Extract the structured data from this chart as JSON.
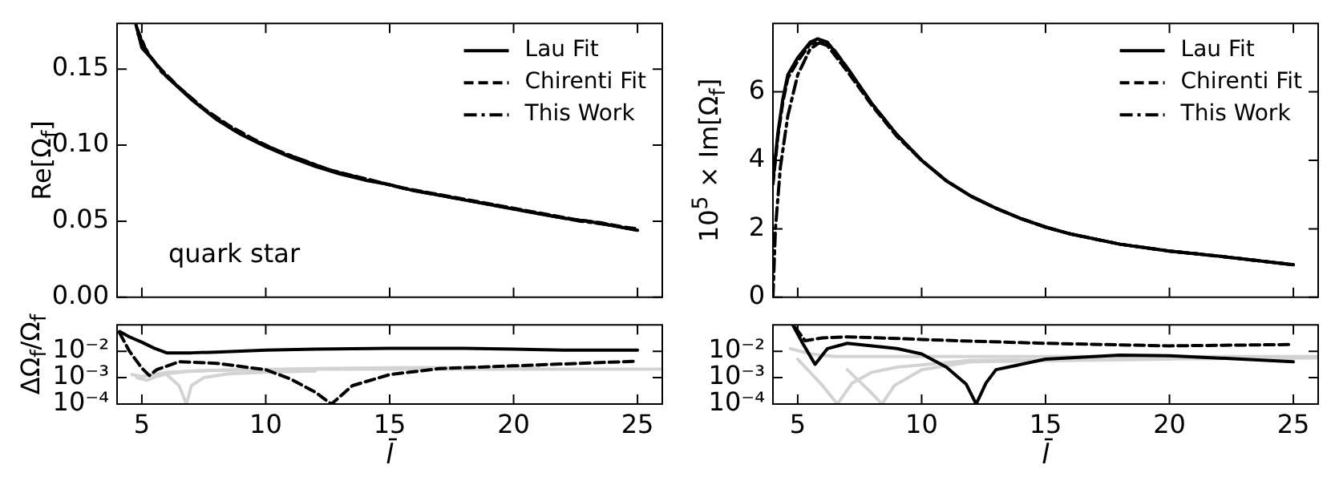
{
  "chart_data": [
    {
      "type": "line",
      "ylabel": "Re[Ω$_{f}$]",
      "xlim": [
        4,
        26
      ],
      "xticks": [
        5,
        10,
        15,
        20,
        25
      ],
      "ylim": [
        0,
        0.18
      ],
      "yticks": [
        {
          "value": 0,
          "label": "0.00"
        },
        {
          "value": 0.05,
          "label": "0.05"
        },
        {
          "value": 0.1,
          "label": "0.10"
        },
        {
          "value": 0.15,
          "label": "0.15"
        }
      ],
      "tick_labels": "y",
      "legend": "top right",
      "marker": "none",
      "annotations": [
        "quark star"
      ],
      "series": [
        {
          "name": "Lau Fit",
          "color": "#000000",
          "line_style": "solid",
          "x": [
            4.75,
            5,
            5.5,
            6,
            7,
            8,
            9,
            10,
            11,
            12,
            13,
            14,
            15,
            16,
            17,
            18,
            19,
            20,
            21,
            22,
            23,
            24,
            25
          ],
          "values": [
            0.18,
            0.164,
            0.155,
            0.145,
            0.13,
            0.117,
            0.107,
            0.099,
            0.092,
            0.086,
            0.081,
            0.077,
            0.074,
            0.07,
            0.067,
            0.064,
            0.061,
            0.058,
            0.055,
            0.052,
            0.05,
            0.047,
            0.044
          ]
        },
        {
          "name": "Chirenti Fit",
          "color": "#000000",
          "line_style": "dashed",
          "x": [
            4.8,
            5.2,
            5.7,
            6.5,
            7.5,
            8.5,
            9.5,
            10.5,
            11.5,
            12.5,
            13.5,
            14.5,
            15.5,
            16.5,
            17.5,
            18.5,
            19.5,
            20.5,
            21.5,
            22.5,
            23.5,
            24.5,
            25
          ],
          "values": [
            0.177,
            0.161,
            0.151,
            0.138,
            0.124,
            0.113,
            0.104,
            0.096,
            0.09,
            0.084,
            0.08,
            0.076,
            0.072,
            0.069,
            0.066,
            0.063,
            0.06,
            0.057,
            0.054,
            0.051,
            0.049,
            0.046,
            0.045
          ]
        },
        {
          "name": "This Work",
          "color": "#000000",
          "line_style": "dashdot",
          "x": [
            4.85,
            5.3,
            5.8,
            6.7,
            7.7,
            8.7,
            9.7,
            10.7,
            11.7,
            12.7,
            13.7,
            14.7,
            15.7,
            16.7,
            17.7,
            18.7,
            19.7,
            20.7,
            21.7,
            22.7,
            23.7,
            24.7,
            25
          ],
          "values": [
            0.173,
            0.159,
            0.148,
            0.135,
            0.121,
            0.11,
            0.102,
            0.095,
            0.089,
            0.083,
            0.079,
            0.075,
            0.071,
            0.068,
            0.065,
            0.062,
            0.059,
            0.056,
            0.053,
            0.05,
            0.048,
            0.045,
            0.044
          ]
        }
      ]
    },
    {
      "type": "line",
      "ylabel": "ΔΩ$_{f}$/Ω$_{f}$",
      "xlabel": "l̄",
      "xlim": [
        4,
        26
      ],
      "xticks": [
        5,
        10,
        15,
        20,
        25
      ],
      "ylim": [
        0.0001,
        0.1
      ],
      "yticks": [
        {
          "value": 0.0001,
          "label": "10⁻⁴"
        },
        {
          "value": 0.001,
          "label": "10⁻³"
        },
        {
          "value": 0.01,
          "label": "10⁻²"
        }
      ],
      "log": "y",
      "marker": "none",
      "series": [
        {
          "color": "#d3d3d3",
          "line_style": "solid",
          "x": [
            4.8,
            5.2,
            5.6,
            6,
            7,
            9,
            12,
            16,
            20,
            26
          ],
          "values": [
            0.001,
            0.0008,
            0.0011,
            0.0014,
            0.0018,
            0.002,
            0.0021,
            0.0021,
            0.0021,
            0.0021
          ]
        },
        {
          "color": "#d3d3d3",
          "line_style": "solid",
          "x": [
            6,
            6.5,
            6.8,
            7,
            7.5,
            8.5,
            10,
            12
          ],
          "values": [
            0.0013,
            0.0005,
            0.0001,
            0.0005,
            0.001,
            0.0014,
            0.0016,
            0.0018
          ]
        },
        {
          "color": "#d3d3d3",
          "line_style": "solid",
          "x": [
            4.6,
            5,
            5.5,
            6,
            8,
            12,
            16,
            21
          ],
          "values": [
            0.0013,
            0.0011,
            0.0013,
            0.0016,
            0.0019,
            0.0022,
            0.0024,
            0.0024
          ]
        },
        {
          "color": "#000000",
          "line_style": "solid",
          "x": [
            4.1,
            4.5,
            5,
            5.5,
            6,
            7,
            8,
            10,
            12,
            15,
            18,
            20,
            22,
            25
          ],
          "values": [
            0.056,
            0.035,
            0.022,
            0.013,
            0.0087,
            0.0087,
            0.0093,
            0.011,
            0.012,
            0.013,
            0.013,
            0.012,
            0.011,
            0.011
          ]
        },
        {
          "color": "#000000",
          "line_style": "dashed",
          "x": [
            4.1,
            4.5,
            5,
            5.3,
            5.6,
            6.5,
            8,
            10,
            11,
            12,
            12.65,
            13.5,
            15,
            17,
            20,
            25
          ],
          "values": [
            0.05,
            0.01,
            0.0023,
            0.0012,
            0.002,
            0.004,
            0.0035,
            0.002,
            0.00089,
            0.00028,
            0.0001,
            0.0005,
            0.0013,
            0.0022,
            0.0028,
            0.0042
          ]
        }
      ]
    },
    {
      "type": "line",
      "ylabel": "10$^{5}$ × Im[Ω$_{f}$]",
      "xlim": [
        4,
        26
      ],
      "xticks": [
        5,
        10,
        15,
        20,
        25
      ],
      "ylim": [
        0,
        8
      ],
      "yticks": [
        0,
        2,
        4,
        6
      ],
      "tick_labels": "y",
      "legend": "top right",
      "marker": "none",
      "series": [
        {
          "name": "Lau Fit",
          "color": "#000000",
          "line_style": "solid",
          "x": [
            4,
            4.2,
            4.4,
            4.6,
            5,
            5.5,
            5.8,
            6.2,
            7,
            8,
            9,
            10,
            11,
            12,
            13,
            14,
            15,
            16,
            18,
            20,
            22,
            25
          ],
          "values": [
            3.4,
            4.8,
            5.8,
            6.5,
            7.0,
            7.45,
            7.55,
            7.45,
            6.7,
            5.65,
            4.75,
            4.0,
            3.4,
            2.95,
            2.6,
            2.3,
            2.05,
            1.85,
            1.55,
            1.35,
            1.2,
            0.95
          ]
        },
        {
          "name": "Chirenti Fit",
          "color": "#000000",
          "line_style": "dashed",
          "x": [
            4,
            4.2,
            4.4,
            4.6,
            5,
            5.5,
            5.8,
            6.2,
            7,
            8,
            9,
            10,
            11,
            12,
            13,
            14,
            15,
            16,
            18,
            20,
            22,
            25
          ],
          "values": [
            3.3,
            4.7,
            5.7,
            6.4,
            6.9,
            7.4,
            7.45,
            7.35,
            6.6,
            5.6,
            4.7,
            4.0,
            3.4,
            2.95,
            2.6,
            2.3,
            2.05,
            1.85,
            1.55,
            1.35,
            1.2,
            0.95
          ]
        },
        {
          "name": "This Work",
          "color": "#000000",
          "line_style": "dashdot",
          "x": [
            4,
            4.1,
            4.3,
            4.6,
            5,
            5.5,
            6,
            6.5,
            7,
            8,
            9,
            10,
            11,
            12,
            13,
            14,
            15,
            16,
            18,
            20,
            22,
            25
          ],
          "values": [
            0,
            2.0,
            3.8,
            5.3,
            6.5,
            7.25,
            7.5,
            7.2,
            6.7,
            5.65,
            4.75,
            4.0,
            3.4,
            2.95,
            2.6,
            2.3,
            2.05,
            1.85,
            1.55,
            1.35,
            1.2,
            0.95
          ]
        }
      ]
    },
    {
      "type": "line",
      "xlabel": "l̄",
      "xlim": [
        4,
        26
      ],
      "xticks": [
        5,
        10,
        15,
        20,
        25
      ],
      "ylim": [
        0.0001,
        0.1
      ],
      "yticks": [
        {
          "value": 0.0001,
          "label": "10⁻⁴"
        },
        {
          "value": 0.001,
          "label": "10⁻³"
        },
        {
          "value": 0.01,
          "label": "10⁻²"
        }
      ],
      "log": "y",
      "marker": "none",
      "series": [
        {
          "color": "#d3d3d3",
          "line_style": "solid",
          "x": [
            4.7,
            5.5,
            6.5,
            8,
            12,
            16,
            26
          ],
          "values": [
            0.0126,
            0.008,
            0.0063,
            0.0063,
            0.0063,
            0.0063,
            0.0063
          ]
        },
        {
          "color": "#d3d3d3",
          "line_style": "solid",
          "x": [
            5,
            6,
            6.6,
            7.2,
            8,
            9,
            12,
            26
          ],
          "values": [
            0.005,
            0.0005,
            0.0001,
            0.00063,
            0.0016,
            0.0025,
            0.0045,
            0.0056
          ]
        },
        {
          "color": "#d3d3d3",
          "line_style": "solid",
          "x": [
            7,
            8,
            8.4,
            8.9,
            10,
            12,
            20
          ],
          "values": [
            0.002,
            0.00025,
            0.0001,
            0.0005,
            0.002,
            0.004,
            0.005
          ]
        },
        {
          "color": "#000000",
          "line_style": "solid",
          "x": [
            4.8,
            5.2,
            5.7,
            6.2,
            7,
            8,
            9,
            10,
            11,
            11.8,
            12.2,
            12.6,
            13,
            15,
            18,
            20,
            25
          ],
          "values": [
            0.1,
            0.02,
            0.0032,
            0.0126,
            0.02,
            0.016,
            0.0126,
            0.0079,
            0.0025,
            0.00056,
            0.0001,
            0.00063,
            0.002,
            0.005,
            0.0071,
            0.0068,
            0.004
          ]
        },
        {
          "color": "#000000",
          "line_style": "dashed",
          "x": [
            4.9,
            5.3,
            6,
            7,
            8,
            10,
            12,
            15,
            20,
            25
          ],
          "values": [
            0.079,
            0.025,
            0.032,
            0.035,
            0.033,
            0.028,
            0.024,
            0.02,
            0.016,
            0.018
          ]
        }
      ]
    }
  ]
}
